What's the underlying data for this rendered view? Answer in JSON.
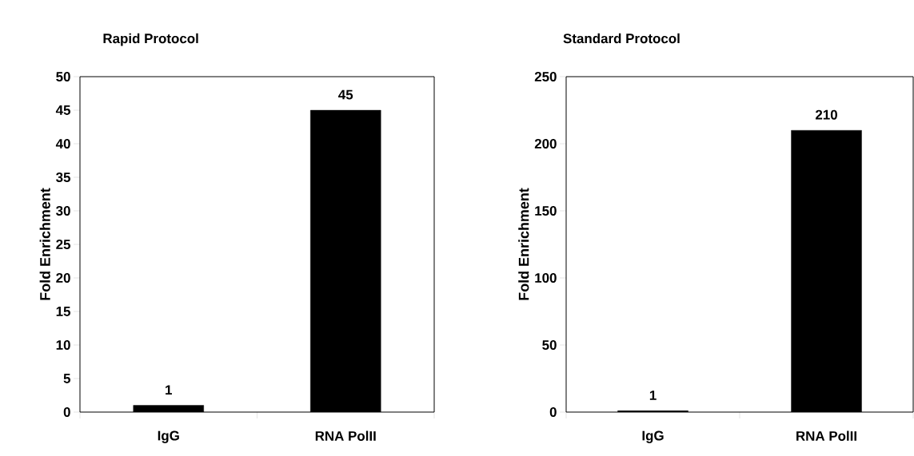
{
  "chart_data": [
    {
      "type": "bar",
      "title": "Rapid Protocol",
      "ylabel": "Fold Enrichment",
      "categories": [
        "IgG",
        "RNA PolII"
      ],
      "values": [
        1,
        45
      ],
      "color": "#000000",
      "ylim": [
        0,
        50
      ],
      "yticks": [
        0,
        5,
        10,
        15,
        20,
        25,
        30,
        35,
        40,
        45,
        50
      ],
      "data_labels": true
    },
    {
      "type": "bar",
      "title": "Standard Protocol",
      "ylabel": "Fold Enrichment",
      "categories": [
        "IgG",
        "RNA PolII"
      ],
      "values": [
        1,
        210
      ],
      "color": "#000000",
      "ylim": [
        0,
        250
      ],
      "yticks": [
        0,
        50,
        100,
        150,
        200,
        250
      ],
      "data_labels": true
    }
  ]
}
